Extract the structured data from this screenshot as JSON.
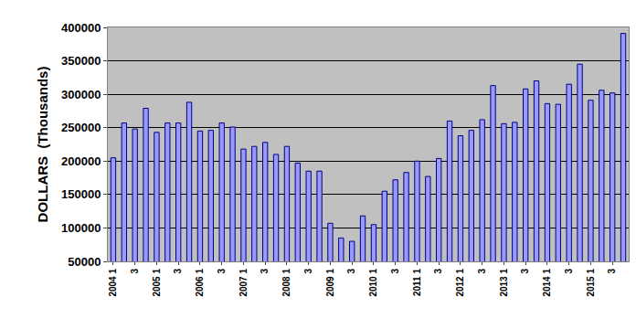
{
  "chart_data": {
    "type": "bar",
    "y_label": "DOLLARS  (Thousands)",
    "categories": [
      "2004 1",
      null,
      "3",
      null,
      "2005 1",
      null,
      "3",
      null,
      "2006 1",
      null,
      "3",
      null,
      "2007 1",
      null,
      "3",
      null,
      "2008 1",
      null,
      "3",
      null,
      "2009 1",
      null,
      "3",
      null,
      "2010 1",
      null,
      "3",
      null,
      "2011 1",
      null,
      "3",
      null,
      "2012 1",
      null,
      "3",
      null,
      "2013 1",
      null,
      "3",
      null,
      "2014 1",
      null,
      "3",
      null,
      "2015 1",
      null,
      "3",
      null
    ],
    "values": [
      205000,
      257000,
      248000,
      279000,
      243000,
      257000,
      257000,
      288000,
      245000,
      246000,
      257000,
      251000,
      218000,
      222000,
      228000,
      210000,
      222000,
      197000,
      185000,
      185000,
      107000,
      85000,
      80000,
      118000,
      105000,
      155000,
      172000,
      183000,
      200000,
      177000,
      204000,
      260000,
      238000,
      246000,
      262000,
      313000,
      256000,
      258000,
      308000,
      320000,
      286000,
      285000,
      315000,
      345000,
      291000,
      306000,
      302000,
      391000
    ],
    "color": "#9999ff",
    "ylim": [
      50000,
      400000
    ],
    "yticks": [
      50000,
      100000,
      150000,
      200000,
      250000,
      300000,
      350000,
      400000
    ],
    "grid": true
  }
}
